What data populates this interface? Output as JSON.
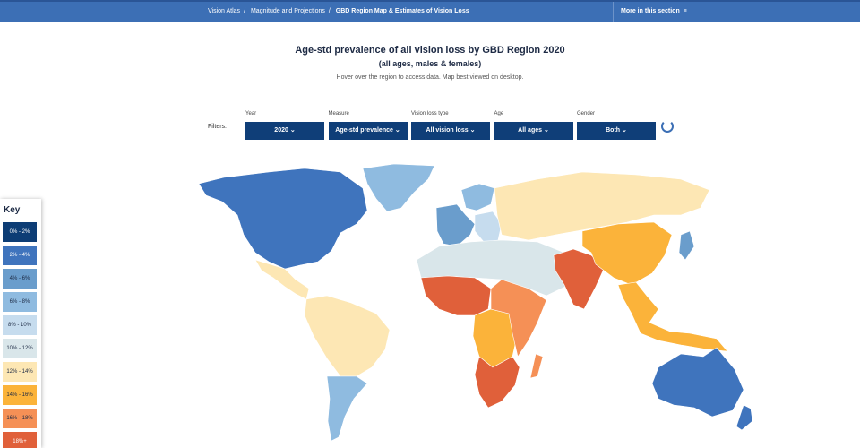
{
  "breadcrumbs": [
    "Vision Atlas",
    "Magnitude and Projections",
    "GBD Region Map & Estimates of Vision Loss"
  ],
  "section_link": "More in this section",
  "title": "Age-std prevalence of all vision loss by GBD Region 2020",
  "subtitle": "(all ages, males & females)",
  "instruction": "Hover over the region to access data. Map best viewed on desktop.",
  "filters_label": "Filters:",
  "filters": [
    {
      "label": "Year",
      "value": "2020"
    },
    {
      "label": "Measure",
      "value": "Age-std prevalence"
    },
    {
      "label": "Vision loss type",
      "value": "All vision loss"
    },
    {
      "label": "Age",
      "value": "All ages"
    },
    {
      "label": "Gender",
      "value": "Both"
    }
  ],
  "key": {
    "title": "Key",
    "items": [
      {
        "label": "0% - 2%",
        "color": "#0d3d75"
      },
      {
        "label": "2% - 4%",
        "color": "#3f74bd"
      },
      {
        "label": "4% - 6%",
        "color": "#6a9dcc"
      },
      {
        "label": "6% - 8%",
        "color": "#8fbbe0"
      },
      {
        "label": "8% - 10%",
        "color": "#c6dcee"
      },
      {
        "label": "10% - 12%",
        "color": "#d9e6ea"
      },
      {
        "label": "12% - 14%",
        "color": "#fde7b4"
      },
      {
        "label": "14% - 16%",
        "color": "#fbb33a"
      },
      {
        "label": "16% - 18%",
        "color": "#f59056"
      },
      {
        "label": "18%+",
        "color": "#e0603a"
      }
    ]
  }
}
